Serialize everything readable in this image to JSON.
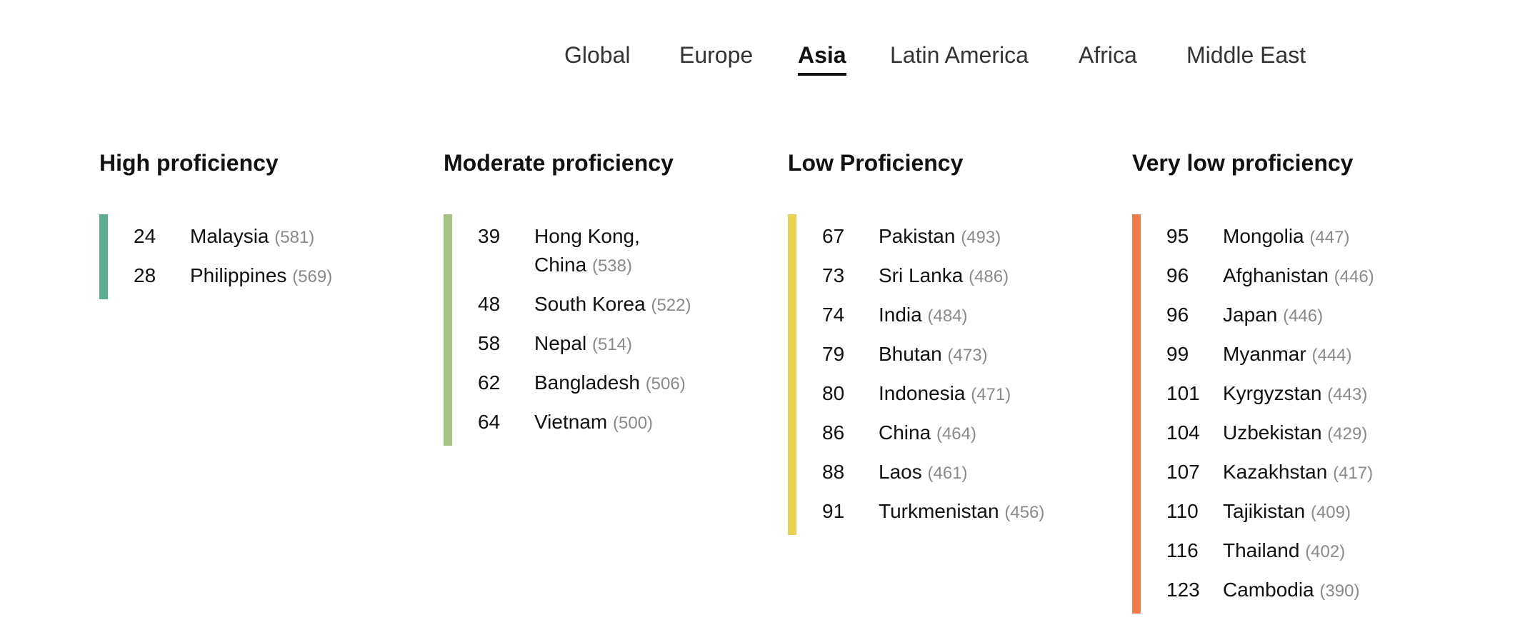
{
  "tabs": [
    {
      "label": "Global"
    },
    {
      "label": "Europe"
    },
    {
      "label": "Asia",
      "active": true
    },
    {
      "label": "Latin America"
    },
    {
      "label": "Africa"
    },
    {
      "label": "Middle East"
    }
  ],
  "colors": {
    "high": "#5aaf8f",
    "moderate": "#a7c285",
    "low": "#ead251",
    "very_low": "#f07c4c"
  },
  "columns": [
    {
      "title": "High proficiency",
      "rows": [
        {
          "rank": "24",
          "country": "Malaysia",
          "score": "(581)"
        },
        {
          "rank": "28",
          "country": "Philippines",
          "score": "(569)"
        }
      ]
    },
    {
      "title": "Moderate proficiency",
      "rows": [
        {
          "rank": "39",
          "country": "Hong Kong,",
          "country2": "China",
          "score": "(538)"
        },
        {
          "rank": "48",
          "country": "South Korea",
          "score": "(522)"
        },
        {
          "rank": "58",
          "country": "Nepal",
          "score": "(514)"
        },
        {
          "rank": "62",
          "country": "Bangladesh",
          "score": "(506)"
        },
        {
          "rank": "64",
          "country": "Vietnam",
          "score": "(500)"
        }
      ]
    },
    {
      "title": "Low Proficiency",
      "rows": [
        {
          "rank": "67",
          "country": "Pakistan",
          "score": "(493)"
        },
        {
          "rank": "73",
          "country": "Sri Lanka",
          "score": "(486)"
        },
        {
          "rank": "74",
          "country": "India",
          "score": "(484)"
        },
        {
          "rank": "79",
          "country": "Bhutan",
          "score": "(473)"
        },
        {
          "rank": "80",
          "country": "Indonesia",
          "score": "(471)"
        },
        {
          "rank": "86",
          "country": "China",
          "score": "(464)"
        },
        {
          "rank": "88",
          "country": "Laos",
          "score": "(461)"
        },
        {
          "rank": "91",
          "country": "Turkmenistan",
          "score": "(456)"
        }
      ]
    },
    {
      "title": "Very low proficiency",
      "rows": [
        {
          "rank": "95",
          "country": "Mongolia",
          "score": "(447)"
        },
        {
          "rank": "96",
          "country": "Afghanistan",
          "score": "(446)"
        },
        {
          "rank": "96",
          "country": "Japan",
          "score": "(446)"
        },
        {
          "rank": "99",
          "country": "Myanmar",
          "score": "(444)"
        },
        {
          "rank": "101",
          "country": "Kyrgyzstan",
          "score": "(443)"
        },
        {
          "rank": "104",
          "country": "Uzbekistan",
          "score": "(429)"
        },
        {
          "rank": "107",
          "country": "Kazakhstan",
          "score": "(417)"
        },
        {
          "rank": "110",
          "country": "Tajikistan",
          "score": "(409)"
        },
        {
          "rank": "116",
          "country": "Thailand",
          "score": "(402)"
        },
        {
          "rank": "123",
          "country": "Cambodia",
          "score": "(390)"
        }
      ]
    }
  ]
}
